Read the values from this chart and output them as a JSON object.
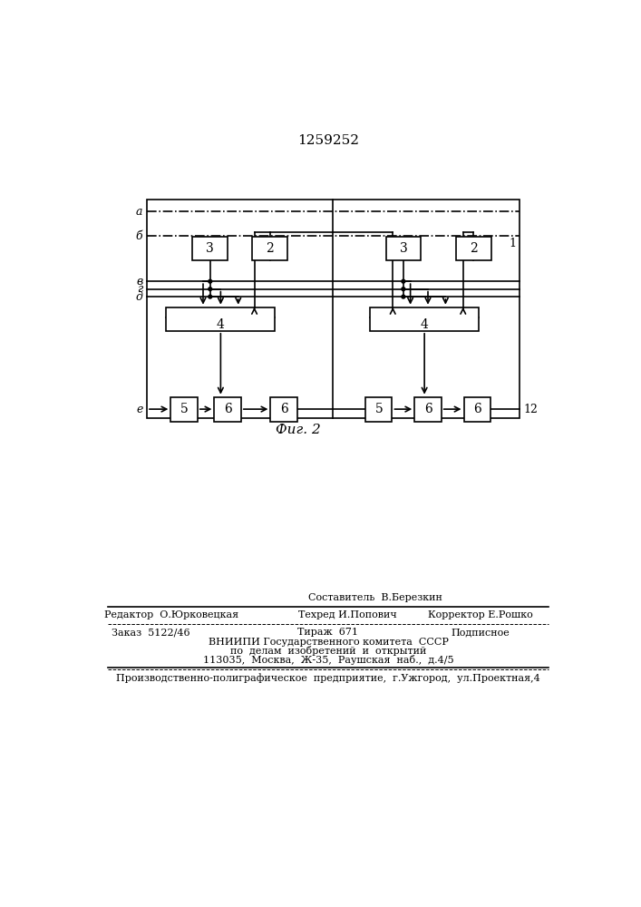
{
  "title": "1259252",
  "fig_label": "Фиг. 2",
  "background_color": "#ffffff",
  "line_color": "#000000",
  "footer_sestavitel": "Составитель  В.Березкин",
  "footer_redaktor": "Редактор  О.Юрковецкая",
  "footer_tehred": "Техред И.Попович",
  "footer_korrektor": "Корректор Е.Рошко",
  "footer_zakaz": "Заказ  5122/46",
  "footer_tirazh": "Тираж  671",
  "footer_podpisnoe": "Подписное",
  "footer_vniip1": "ВНИИПИ Государственного комитета  СССР",
  "footer_vniip2": "по  делам  изобретений  и  открытий",
  "footer_vniip3": "113035,  Москва,  Ж-35,  Раушская  наб.,  д.4/5",
  "footer_prod": "Производственно-полиграфическое  предприятие,  г.Ужгород,  ул.Проектная,4"
}
